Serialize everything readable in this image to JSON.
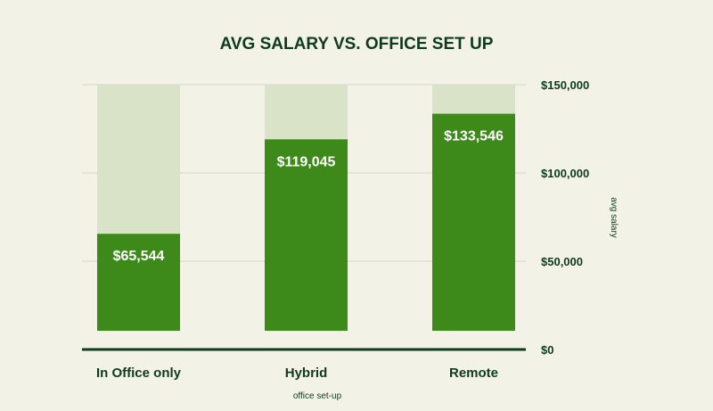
{
  "chart_data": {
    "type": "bar",
    "title": "AVG SALARY VS. OFFICE SET UP",
    "xlabel": "office set-up",
    "ylabel": "avg salary",
    "categories": [
      "In Office only",
      "Hybrid",
      "Remote"
    ],
    "values": [
      65544,
      119045,
      133546
    ],
    "value_labels": [
      "$65,544",
      "$119,045",
      "$133,546"
    ],
    "background_max": 150000,
    "ylim": [
      0,
      150000
    ],
    "yticks": [
      0,
      50000,
      100000,
      150000
    ],
    "ytick_labels": [
      "$0",
      "$50,000",
      "$100,000",
      "$150,000"
    ],
    "y_axis_position": "right",
    "grid": true,
    "legend": "none",
    "colors": {
      "bar": "#3d8a1a",
      "bar_background": "#d8e3c8",
      "text": "#0f3a22",
      "grid": "#d4d4c4",
      "baseline": "#0f3a22",
      "page_background": "#f3f2e6",
      "value_text": "#ffffff"
    }
  }
}
